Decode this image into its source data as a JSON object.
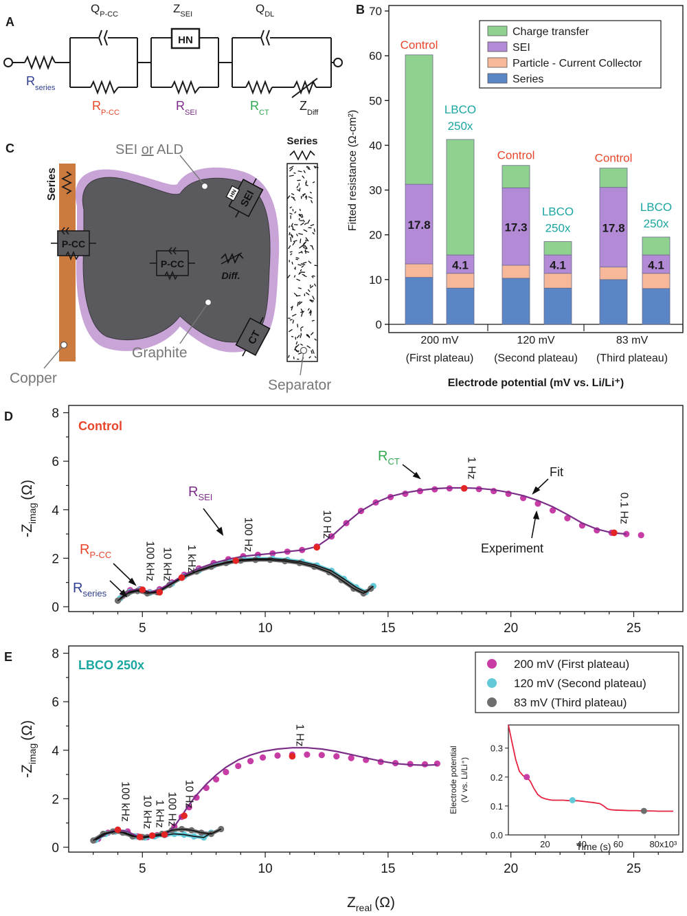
{
  "colors": {
    "charge_transfer": "#8fd18f",
    "sei": "#b28ad6",
    "pcc": "#f7b89a",
    "series": "#5b86c5",
    "control_text": "#e8452a",
    "lbco_text": "#1aa6a0",
    "magenta": "#c83ca6",
    "cyan": "#62c9d8",
    "gray": "#6e6e6e",
    "red_point": "#e42525",
    "fit_line": "#7b2d88",
    "copper": "#cc7a3e",
    "graphite": "#5a5a5e",
    "sei_shell": "#c8a5d6"
  },
  "panelA": {
    "letter": "A",
    "labels": {
      "q_pcc": "Q",
      "q_pcc_sub": "P-CC",
      "z_sei": "Z",
      "z_sei_sub": "SEI",
      "hn": "HN",
      "q_dl": "Q",
      "q_dl_sub": "DL",
      "r_series": "R",
      "r_series_sub": "series",
      "r_pcc": "R",
      "r_pcc_sub": "P-CC",
      "r_sei": "R",
      "r_sei_sub": "SEI",
      "r_ct": "R",
      "r_ct_sub": "CT",
      "z_diff": "Z",
      "z_diff_sub": "Diff"
    }
  },
  "panelC": {
    "letter": "C",
    "labels": {
      "series_vertical": "Series",
      "sei_or_ald_a": "SEI ",
      "sei_or_ald_b": "or",
      "sei_or_ald_c": " ALD",
      "series_top": "Series",
      "pcc_left": "P-CC",
      "pcc_middle": "P-CC",
      "diff": "Diff.",
      "sei_box": "SEI",
      "hn_small": "HN",
      "ct_box": "CT",
      "graphite": "Graphite",
      "copper": "Copper",
      "separator": "Separator"
    }
  },
  "chart_data": [
    {
      "id": "B",
      "type": "bar",
      "letter": "B",
      "stacked": true,
      "ylabel": "Fitted resistance (Ω-cm²)",
      "xlabel": "Electrode potential (mV vs. Li/Li⁺)",
      "ylim": [
        0,
        70
      ],
      "yticks": [
        0,
        10,
        20,
        30,
        40,
        50,
        60,
        70
      ],
      "groups": [
        {
          "label": "200 mV",
          "sublabel": "(First plateau)"
        },
        {
          "label": "120 mV",
          "sublabel": "(Second plateau)"
        },
        {
          "label": "83 mV",
          "sublabel": "(Third plateau)"
        }
      ],
      "bars": [
        {
          "group": 0,
          "sample": "Control",
          "label_l1": "Control",
          "label_l2": "",
          "series": 10.5,
          "pcc": 3.0,
          "sei": 17.8,
          "ct": 28.9,
          "sei_label": "17.8"
        },
        {
          "group": 0,
          "sample": "LBCO 250x",
          "label_l1": "LBCO",
          "label_l2": "250x",
          "series": 8.1,
          "pcc": 3.3,
          "sei": 4.1,
          "ct": 25.8,
          "sei_label": "4.1"
        },
        {
          "group": 1,
          "sample": "Control",
          "label_l1": "Control",
          "label_l2": "",
          "series": 10.3,
          "pcc": 2.9,
          "sei": 17.3,
          "ct": 5.0,
          "sei_label": "17.3"
        },
        {
          "group": 1,
          "sample": "LBCO 250x",
          "label_l1": "LBCO",
          "label_l2": "250x",
          "series": 8.1,
          "pcc": 3.3,
          "sei": 4.1,
          "ct": 3.0,
          "sei_label": "4.1"
        },
        {
          "group": 2,
          "sample": "Control",
          "label_l1": "Control",
          "label_l2": "",
          "series": 10.0,
          "pcc": 2.8,
          "sei": 17.8,
          "ct": 4.3,
          "sei_label": "17.8"
        },
        {
          "group": 2,
          "sample": "LBCO 250x",
          "label_l1": "LBCO",
          "label_l2": "250x",
          "series": 8.0,
          "pcc": 3.4,
          "sei": 4.1,
          "ct": 4.0,
          "sei_label": "4.1"
        }
      ],
      "legend": [
        "Charge transfer",
        "SEI",
        "Particle - Current Collector",
        "Series"
      ],
      "legend_position": "top-right"
    },
    {
      "id": "D",
      "type": "scatter",
      "letter": "D",
      "title": "Control",
      "ylabel_main": "-Z",
      "ylabel_sub": "imag",
      "ylabel_unit": "(Ω)",
      "xlim": [
        2,
        27
      ],
      "ylim": [
        -0.2,
        8.3
      ],
      "xticks": [
        5,
        10,
        15,
        20,
        25
      ],
      "yticks": [
        0,
        2,
        4,
        6,
        8
      ],
      "series": [
        {
          "name": "200 mV (First plateau)",
          "color_key": "magenta",
          "x": [
            4.2,
            4.5,
            4.9,
            5.3,
            5.7,
            6.2,
            6.7,
            7.3,
            7.9,
            8.5,
            9.1,
            9.7,
            10.3,
            10.9,
            11.5,
            12.1,
            12.7,
            13.3,
            13.9,
            14.5,
            15.1,
            15.7,
            16.3,
            16.9,
            17.5,
            18.1,
            18.7,
            19.3,
            19.9,
            20.5,
            21.1,
            21.7,
            22.3,
            22.9,
            23.5,
            24.1,
            24.7,
            25.3
          ],
          "y": [
            0.45,
            0.68,
            0.72,
            0.6,
            0.72,
            1.0,
            1.32,
            1.58,
            1.8,
            1.96,
            2.08,
            2.14,
            2.2,
            2.27,
            2.34,
            2.48,
            2.9,
            3.45,
            3.95,
            4.3,
            4.52,
            4.66,
            4.77,
            4.84,
            4.88,
            4.88,
            4.85,
            4.77,
            4.66,
            4.48,
            4.25,
            3.97,
            3.65,
            3.35,
            3.15,
            3.05,
            3.0,
            2.95
          ]
        },
        {
          "name": "120 mV (Second plateau)",
          "color_key": "cyan",
          "x": [
            4.1,
            4.5,
            4.9,
            5.3,
            5.7,
            6.2,
            6.7,
            7.3,
            7.9,
            8.5,
            9.1,
            9.7,
            10.3,
            10.9,
            11.5,
            12.1,
            12.7,
            13.2,
            13.7,
            14.1,
            14.4
          ],
          "y": [
            0.35,
            0.62,
            0.7,
            0.58,
            0.65,
            0.95,
            1.25,
            1.5,
            1.7,
            1.85,
            1.95,
            1.98,
            1.98,
            1.93,
            1.85,
            1.7,
            1.48,
            1.15,
            0.8,
            0.6,
            0.85
          ]
        },
        {
          "name": "83 mV (Third plateau)",
          "color_key": "gray",
          "x": [
            4.0,
            4.4,
            4.8,
            5.2,
            5.6,
            6.1,
            6.6,
            7.2,
            7.8,
            8.4,
            9.0,
            9.6,
            10.2,
            10.8,
            11.4,
            12.0,
            12.6,
            13.1,
            13.6,
            14.0,
            14.3
          ],
          "y": [
            0.25,
            0.55,
            0.65,
            0.55,
            0.6,
            0.9,
            1.2,
            1.45,
            1.65,
            1.8,
            1.9,
            1.93,
            1.93,
            1.88,
            1.8,
            1.65,
            1.42,
            1.1,
            0.75,
            0.55,
            0.75
          ]
        }
      ],
      "fit": {
        "x": [
          4.2,
          4.5,
          4.9,
          5.3,
          5.7,
          6.2,
          6.7,
          7.3,
          7.9,
          8.5,
          9.1,
          9.7,
          10.3,
          10.9,
          11.5,
          12.1,
          12.7,
          13.3,
          13.9,
          14.5,
          15.1,
          15.7,
          16.3,
          16.9,
          17.5,
          18.1,
          18.7,
          19.3,
          19.9,
          20.5,
          21.1,
          21.7,
          22.3,
          22.9,
          23.5,
          24.1,
          24.7
        ],
        "y": [
          0.45,
          0.68,
          0.72,
          0.6,
          0.72,
          1.0,
          1.32,
          1.58,
          1.8,
          1.96,
          2.08,
          2.14,
          2.2,
          2.27,
          2.34,
          2.48,
          2.9,
          3.45,
          3.95,
          4.3,
          4.55,
          4.7,
          4.8,
          4.87,
          4.9,
          4.9,
          4.88,
          4.82,
          4.72,
          4.58,
          4.38,
          4.12,
          3.8,
          3.45,
          3.2,
          3.05,
          3.0
        ]
      },
      "red_points": {
        "x": [
          5.0,
          5.7,
          6.6,
          8.8,
          12.1,
          18.1,
          24.2
        ],
        "y": [
          0.7,
          0.6,
          1.2,
          1.9,
          2.45,
          4.88,
          3.05
        ]
      },
      "freq_labels": [
        {
          "text": "100 kHz",
          "x": 5.0,
          "y": 1.05
        },
        {
          "text": "10 kHz",
          "x": 5.7,
          "y": 1.05
        },
        {
          "text": "1 kHz",
          "x": 6.7,
          "y": 1.4
        },
        {
          "text": "100 Hz",
          "x": 9.0,
          "y": 2.25
        },
        {
          "text": "10 Hz",
          "x": 12.2,
          "y": 2.8
        },
        {
          "text": "1 Hz",
          "x": 18.1,
          "y": 5.25
        },
        {
          "text": "0.1 Hz",
          "x": 24.3,
          "y": 3.4
        }
      ],
      "annotations": {
        "r_series": "R",
        "r_series_sub": "series",
        "r_pcc": "R",
        "r_pcc_sub": "P-CC",
        "r_sei": "R",
        "r_sei_sub": "SEI",
        "r_ct": "R",
        "r_ct_sub": "CT",
        "fit": "Fit",
        "experiment": "Experiment"
      }
    },
    {
      "id": "E",
      "type": "scatter",
      "letter": "E",
      "title": "LBCO 250x",
      "ylabel_main": "-Z",
      "ylabel_sub": "imag",
      "ylabel_unit": "(Ω)",
      "xlabel_main": "Z",
      "xlabel_sub": "real",
      "xlabel_unit": "(Ω)",
      "xlim": [
        2,
        27
      ],
      "ylim": [
        -0.2,
        8.3
      ],
      "xticks": [
        5,
        10,
        15,
        20,
        25
      ],
      "yticks": [
        0,
        2,
        4,
        6,
        8
      ],
      "series": [
        {
          "name": "200 mV (First plateau)",
          "color_key": "magenta",
          "x": [
            3.2,
            3.6,
            4.0,
            4.4,
            4.8,
            5.2,
            5.6,
            6.0,
            6.3,
            6.6,
            6.9,
            7.2,
            7.6,
            8.0,
            8.4,
            8.9,
            9.4,
            9.9,
            10.5,
            11.1,
            11.7,
            12.3,
            12.9,
            13.5,
            14.1,
            14.7,
            15.3,
            15.9,
            16.5,
            17.0
          ],
          "y": [
            0.35,
            0.6,
            0.72,
            0.65,
            0.45,
            0.42,
            0.5,
            0.55,
            0.85,
            1.25,
            1.65,
            2.05,
            2.45,
            2.8,
            3.1,
            3.35,
            3.55,
            3.7,
            3.78,
            3.82,
            3.82,
            3.8,
            3.75,
            3.68,
            3.6,
            3.52,
            3.47,
            3.43,
            3.42,
            3.45
          ]
        },
        {
          "name": "120 mV (Second plateau)",
          "color_key": "cyan",
          "x": [
            3.1,
            3.5,
            3.9,
            4.3,
            4.7,
            5.1,
            5.5,
            5.9,
            6.3,
            6.7,
            7.1,
            7.5,
            7.8
          ],
          "y": [
            0.3,
            0.55,
            0.65,
            0.6,
            0.45,
            0.4,
            0.45,
            0.5,
            0.55,
            0.52,
            0.45,
            0.4,
            0.6
          ]
        },
        {
          "name": "83 mV (Third plateau)",
          "color_key": "gray",
          "x": [
            3.0,
            3.4,
            3.8,
            4.2,
            4.6,
            5.0,
            5.4,
            5.8,
            6.2,
            6.6,
            7.0,
            7.4,
            7.8,
            8.2
          ],
          "y": [
            0.28,
            0.55,
            0.65,
            0.6,
            0.45,
            0.42,
            0.48,
            0.55,
            0.7,
            0.75,
            0.7,
            0.6,
            0.55,
            0.75
          ]
        }
      ],
      "fit": {
        "x": [
          3.2,
          3.6,
          4.0,
          4.4,
          4.8,
          5.2,
          5.6,
          6.0,
          6.3,
          6.6,
          6.9,
          7.2,
          7.6,
          8.0,
          8.4,
          8.9,
          9.4,
          9.9,
          10.5,
          11.1,
          11.7,
          12.3,
          12.9,
          13.5,
          14.1,
          14.7,
          15.3,
          15.9,
          16.5,
          17.0
        ],
        "y": [
          0.35,
          0.6,
          0.72,
          0.65,
          0.45,
          0.42,
          0.5,
          0.55,
          0.85,
          1.3,
          1.75,
          2.15,
          2.6,
          2.98,
          3.3,
          3.6,
          3.8,
          3.95,
          4.05,
          4.1,
          4.1,
          4.05,
          3.95,
          3.82,
          3.68,
          3.55,
          3.45,
          3.4,
          3.38,
          3.4
        ]
      },
      "red_points": {
        "x": [
          4.0,
          4.9,
          5.4,
          5.9,
          6.7,
          11.1
        ],
        "y": [
          0.72,
          0.42,
          0.48,
          0.52,
          1.3,
          3.75
        ]
      },
      "freq_labels": [
        {
          "text": "100 kHz",
          "x": 4.0,
          "y": 1.05
        },
        {
          "text": "10 kHz",
          "x": 4.9,
          "y": 0.75
        },
        {
          "text": "1 kHz",
          "x": 5.4,
          "y": 0.8
        },
        {
          "text": "100 Hz",
          "x": 5.9,
          "y": 0.85
        },
        {
          "text": "10 Hz",
          "x": 6.6,
          "y": 1.6
        },
        {
          "text": "1 Hz",
          "x": 11.1,
          "y": 4.15
        }
      ],
      "legend": [
        "200 mV (First plateau)",
        "120 mV (Second plateau)",
        "83 mV (Third plateau)"
      ],
      "legend_position": "top-right"
    },
    {
      "id": "E-inset",
      "type": "line",
      "xlabel": "Time (s)",
      "ylabel_l1": "Electrode potential",
      "ylabel_l2": "(V vs. Li/Li⁺)",
      "xlim": [
        0,
        93
      ],
      "ylim": [
        0,
        0.38
      ],
      "xticks": [
        20,
        40,
        60,
        80
      ],
      "xtick_labels": [
        "20",
        "40",
        "60",
        "80x10³"
      ],
      "yticks": [
        0.0,
        0.1,
        0.2,
        0.3
      ],
      "ytick_labels": [
        "0.0",
        "0.1",
        "0.2",
        "0.3"
      ],
      "x": [
        0,
        2,
        4,
        6,
        8,
        10,
        12,
        14,
        16,
        18,
        20,
        22,
        24,
        26,
        30,
        34,
        38,
        42,
        46,
        50,
        52,
        54,
        56,
        58,
        62,
        66,
        70,
        74,
        78,
        82,
        86,
        90
      ],
      "y": [
        0.38,
        0.32,
        0.26,
        0.22,
        0.205,
        0.2,
        0.185,
        0.16,
        0.14,
        0.13,
        0.125,
        0.122,
        0.12,
        0.12,
        0.12,
        0.118,
        0.118,
        0.115,
        0.112,
        0.108,
        0.1,
        0.09,
        0.087,
        0.086,
        0.085,
        0.084,
        0.084,
        0.083,
        0.083,
        0.082,
        0.082,
        0.082
      ],
      "markers": [
        {
          "x": 10,
          "y": 0.2,
          "color_key": "magenta"
        },
        {
          "x": 35,
          "y": 0.12,
          "color_key": "cyan"
        },
        {
          "x": 74,
          "y": 0.083,
          "color_key": "gray"
        }
      ]
    }
  ]
}
